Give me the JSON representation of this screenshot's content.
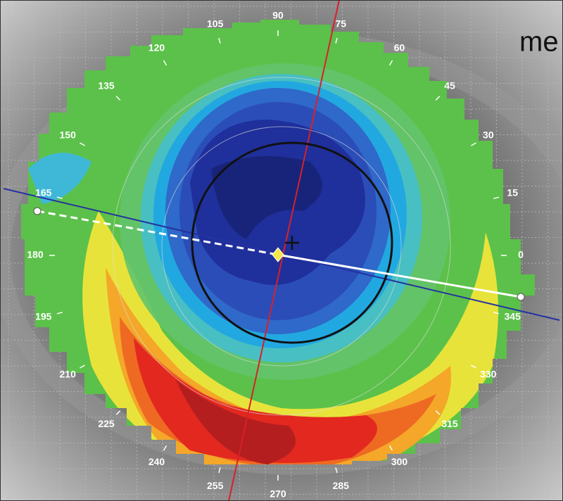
{
  "corner_text": "me",
  "angle_labels": [
    "90",
    "75",
    "60",
    "45",
    "30",
    "15",
    "0",
    "345",
    "330",
    "315",
    "300",
    "285",
    "270",
    "255",
    "240",
    "225",
    "210",
    "195",
    "180",
    "165",
    "150",
    "135",
    "120",
    "105"
  ]
}
